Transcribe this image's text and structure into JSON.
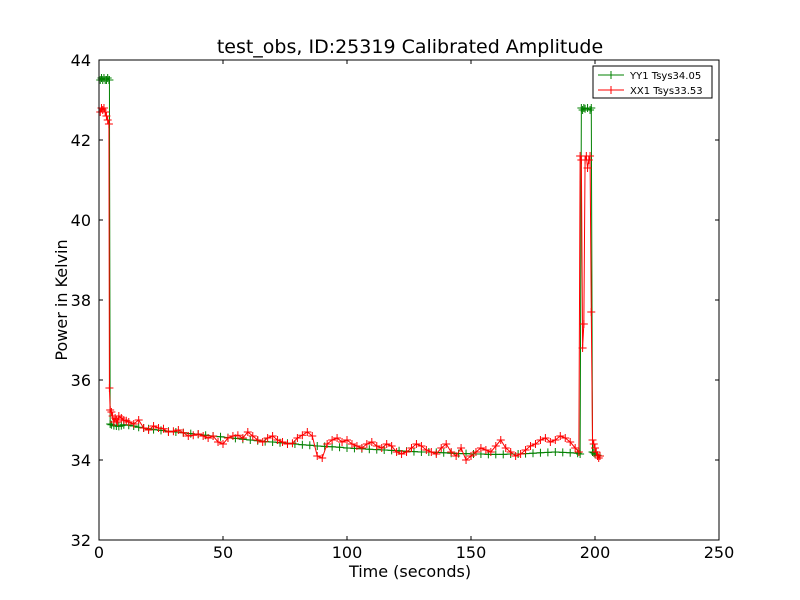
{
  "chart_data": {
    "type": "line",
    "title": "test_obs, ID:25319 Calibrated Amplitude",
    "xlabel": "Time (seconds)",
    "ylabel": "Power in Kelvin",
    "xlim": [
      0,
      250
    ],
    "ylim": [
      32,
      44
    ],
    "xticks": [
      0,
      50,
      100,
      150,
      200,
      250
    ],
    "yticks": [
      32,
      34,
      36,
      38,
      40,
      42,
      44
    ],
    "grid": false,
    "legend_position": "top-right",
    "marker": "+",
    "series": [
      {
        "name": "YY1 Tsys34.05",
        "color": "#008000",
        "x": [
          0.5,
          1,
          1.5,
          2,
          2.5,
          3,
          3.5,
          4,
          4.2,
          4.5,
          5,
          6,
          7,
          8,
          9,
          10,
          12,
          14,
          16,
          18,
          20,
          22,
          25,
          28,
          31,
          34,
          37,
          40,
          43,
          46,
          49,
          52,
          55,
          58,
          61,
          64,
          67,
          70,
          73,
          76,
          79,
          82,
          85,
          88,
          91,
          94,
          97,
          100,
          103,
          106,
          109,
          112,
          115,
          118,
          121,
          124,
          127,
          130,
          133,
          136,
          139,
          142,
          145,
          148,
          151,
          154,
          157,
          160,
          163,
          166,
          169,
          172,
          175,
          178,
          181,
          184,
          187,
          190,
          193,
          194,
          194.5,
          195,
          195.5,
          196,
          197,
          198,
          198.5,
          199,
          199.5,
          200,
          201,
          202
        ],
        "y": [
          43.5,
          43.55,
          43.5,
          43.55,
          43.5,
          43.5,
          43.55,
          43.5,
          43.5,
          34.9,
          34.88,
          34.86,
          34.85,
          34.84,
          34.86,
          34.88,
          34.87,
          34.85,
          34.82,
          34.8,
          34.78,
          34.76,
          34.74,
          34.72,
          34.7,
          34.68,
          34.66,
          34.64,
          34.62,
          34.6,
          34.58,
          34.56,
          34.54,
          34.52,
          34.5,
          34.48,
          34.46,
          34.45,
          34.43,
          34.42,
          34.4,
          34.38,
          34.37,
          34.35,
          34.34,
          34.33,
          34.32,
          34.3,
          34.29,
          34.28,
          34.27,
          34.26,
          34.25,
          34.24,
          34.23,
          34.22,
          34.21,
          34.2,
          34.2,
          34.19,
          34.18,
          34.17,
          34.16,
          34.16,
          34.15,
          34.15,
          34.14,
          34.14,
          34.14,
          34.15,
          34.15,
          34.16,
          34.17,
          34.18,
          34.19,
          34.2,
          34.19,
          34.18,
          34.17,
          34.15,
          42.8,
          42.75,
          42.8,
          42.78,
          42.8,
          42.75,
          42.8,
          34.2,
          34.18,
          34.15,
          34.12,
          34.1
        ]
      },
      {
        "name": "XX1 Tsys33.53",
        "color": "#ff0000",
        "x": [
          0.5,
          1,
          1.5,
          2,
          2.5,
          3,
          3.5,
          4,
          4.2,
          4.5,
          5,
          5.5,
          6,
          6.5,
          7,
          7.5,
          8,
          9,
          10,
          11,
          12,
          14,
          16,
          18,
          20,
          22,
          24,
          26,
          28,
          30,
          32,
          34,
          36,
          38,
          40,
          42,
          44,
          46,
          48,
          50,
          52,
          54,
          56,
          58,
          60,
          62,
          64,
          66,
          68,
          70,
          72,
          74,
          76,
          78,
          80,
          82,
          84,
          86,
          88,
          90,
          92,
          94,
          96,
          98,
          100,
          102,
          104,
          106,
          108,
          110,
          112,
          114,
          116,
          118,
          120,
          122,
          124,
          126,
          128,
          130,
          132,
          134,
          136,
          138,
          140,
          142,
          144,
          146,
          148,
          150,
          152,
          154,
          156,
          158,
          160,
          162,
          164,
          166,
          168,
          170,
          172,
          174,
          176,
          178,
          180,
          182,
          184,
          186,
          188,
          190,
          192,
          193.5,
          194,
          194.5,
          195,
          195.5,
          196,
          196.5,
          197,
          197.5,
          198,
          198.5,
          199,
          199.5,
          200,
          200.5,
          201,
          201.5,
          202
        ],
        "y": [
          42.7,
          42.8,
          42.75,
          42.8,
          42.7,
          42.6,
          42.5,
          42.4,
          35.8,
          35.25,
          35.2,
          35.1,
          34.95,
          35.05,
          35.0,
          34.95,
          35.1,
          35.05,
          35.0,
          34.98,
          34.95,
          34.9,
          35.0,
          34.8,
          34.75,
          34.85,
          34.8,
          34.78,
          34.7,
          34.72,
          34.75,
          34.68,
          34.6,
          34.62,
          34.65,
          34.6,
          34.55,
          34.6,
          34.45,
          34.4,
          34.55,
          34.6,
          34.62,
          34.55,
          34.7,
          34.6,
          34.5,
          34.45,
          34.55,
          34.6,
          34.5,
          34.45,
          34.4,
          34.42,
          34.55,
          34.62,
          34.7,
          34.6,
          34.1,
          34.05,
          34.4,
          34.5,
          34.55,
          34.45,
          34.5,
          34.4,
          34.35,
          34.3,
          34.4,
          34.45,
          34.35,
          34.3,
          34.4,
          34.35,
          34.2,
          34.15,
          34.2,
          34.3,
          34.4,
          34.35,
          34.25,
          34.2,
          34.15,
          34.3,
          34.4,
          34.2,
          34.1,
          34.3,
          34.0,
          34.1,
          34.2,
          34.3,
          34.25,
          34.2,
          34.35,
          34.5,
          34.3,
          34.2,
          34.1,
          34.15,
          34.25,
          34.35,
          34.4,
          34.5,
          34.55,
          34.45,
          34.5,
          34.6,
          34.55,
          34.45,
          34.3,
          34.2,
          41.6,
          41.5,
          36.8,
          37.4,
          41.5,
          41.6,
          41.3,
          41.5,
          41.6,
          37.7,
          34.5,
          34.4,
          34.3,
          34.2,
          34.1,
          34.05,
          34.1
        ]
      }
    ]
  }
}
